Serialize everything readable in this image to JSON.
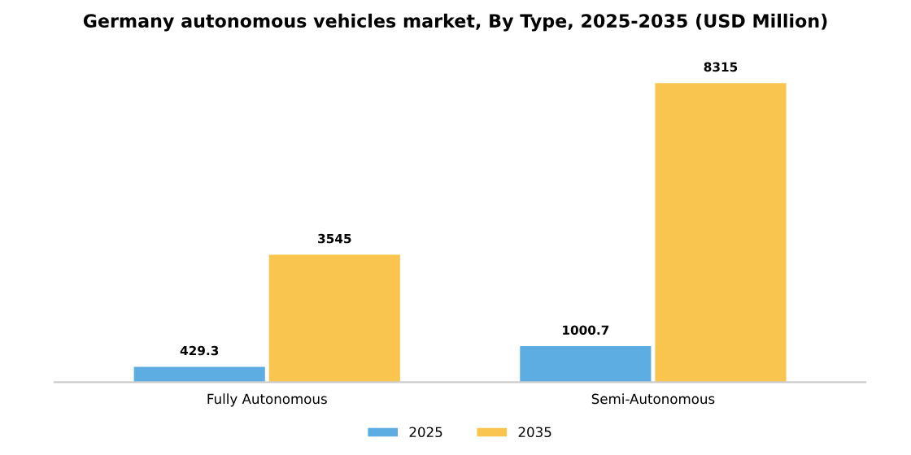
{
  "chart_data": {
    "type": "bar",
    "title": "Germany autonomous vehicles market, By Type, 2025-2035 (USD Million)",
    "categories": [
      "Fully Autonomous",
      "Semi-Autonomous"
    ],
    "series": [
      {
        "name": "2025",
        "color": "#5dade2",
        "values": [
          429.3,
          1000.7
        ]
      },
      {
        "name": "2035",
        "color": "#f9c54f",
        "values": [
          3545,
          8315
        ]
      }
    ],
    "data_labels": true,
    "legend": "bottom",
    "grid": false
  }
}
